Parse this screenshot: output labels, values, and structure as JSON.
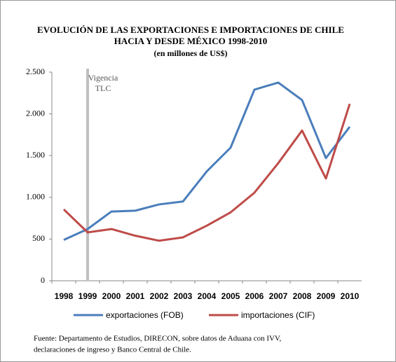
{
  "chart_data": {
    "type": "line",
    "title": [
      "EVOLUCIÓN DE LAS EXPORTACIONES E IMPORTACIONES DE CHILE",
      "HACIA Y DESDE MÉXICO 1998-2010"
    ],
    "subtitle": "(en millones de US$)",
    "categories": [
      "1998",
      "1999",
      "2000",
      "2001",
      "2002",
      "2003",
      "2004",
      "2005",
      "2006",
      "2007",
      "2008",
      "2009",
      "2010"
    ],
    "series": [
      {
        "name": "exportaciones (FOB)",
        "color": "#4a7ebb",
        "values": [
          490,
          620,
          830,
          840,
          915,
          950,
          1310,
          1595,
          2290,
          2375,
          2165,
          1470,
          1845
        ]
      },
      {
        "name": "importaciones (CIF)",
        "color": "#be4b48",
        "values": [
          855,
          580,
          620,
          540,
          480,
          520,
          660,
          820,
          1055,
          1410,
          1800,
          1225,
          2120
        ]
      }
    ],
    "ylim": [
      0,
      2500
    ],
    "yticks": [
      0,
      500,
      {
        "value": 1000,
        "label": "1.000"
      },
      {
        "value": 1500,
        "label": "1.500"
      },
      {
        "value": 2000,
        "label": "2.000"
      },
      {
        "value": 2500,
        "label": "2.500"
      }
    ],
    "annotation": {
      "lines": [
        "Vigencia",
        "TLC"
      ],
      "category": "1999",
      "color": "#bfbfbf"
    },
    "legend": "bottom",
    "source": [
      "Fuente: Departamento de Estudios,  DIRECON, sobre datos de Aduana con IVV,",
      "declaraciones de ingreso y Banco Central de Chile."
    ]
  }
}
